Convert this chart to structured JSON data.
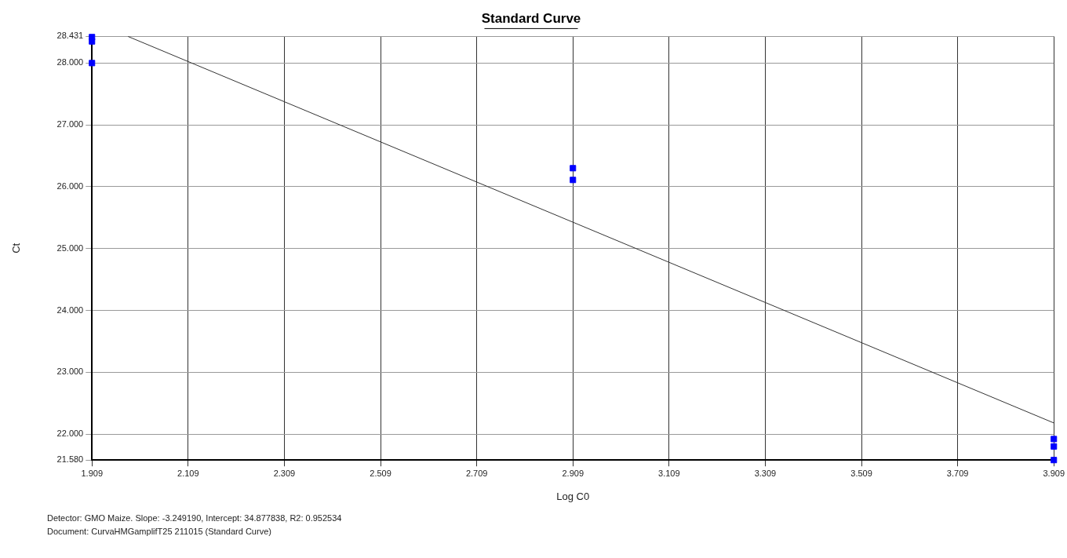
{
  "chart_data": {
    "type": "scatter",
    "title": "Standard Curve",
    "xlabel": "Log C0",
    "ylabel": "Ct",
    "x": [
      1.909,
      1.909,
      1.909,
      2.909,
      2.909,
      3.909,
      3.909,
      3.909
    ],
    "series": [
      {
        "type": "scatter",
        "color": "#0000ff",
        "values": [
          28.42,
          28.35,
          28.0,
          26.3,
          26.11,
          21.92,
          21.8,
          21.58
        ]
      },
      {
        "type": "line",
        "color": "#333333",
        "x": [
          1.984,
          3.909
        ],
        "values": [
          28.43,
          22.18
        ],
        "marker": "none"
      }
    ],
    "marker": "square",
    "grid": true,
    "line_style": "solid",
    "xlim": [
      1.909,
      3.909
    ],
    "ylim": [
      21.58,
      28.431
    ],
    "xticks": [
      1.909,
      2.109,
      2.309,
      2.509,
      2.709,
      2.909,
      3.109,
      3.309,
      3.509,
      3.709,
      3.909
    ],
    "yticks": [
      {
        "value": 21.58,
        "label": "21.580"
      },
      {
        "value": 22,
        "label": "22.000"
      },
      {
        "value": 23,
        "label": "23.000"
      },
      {
        "value": 24,
        "label": "24.000"
      },
      {
        "value": 25,
        "label": "25.000"
      },
      {
        "value": 26,
        "label": "26.000"
      },
      {
        "value": 27,
        "label": "27.000"
      },
      {
        "value": 28,
        "label": "28.000"
      },
      {
        "value": 28.431,
        "label": "28.431"
      }
    ],
    "annotations": [
      "Detector: GMO Maize. Slope: -3.249190, Intercept: 34.877838, R2: 0.952534",
      "Document: CurvaHMGamplifT25 211015 (Standard Curve)"
    ]
  }
}
